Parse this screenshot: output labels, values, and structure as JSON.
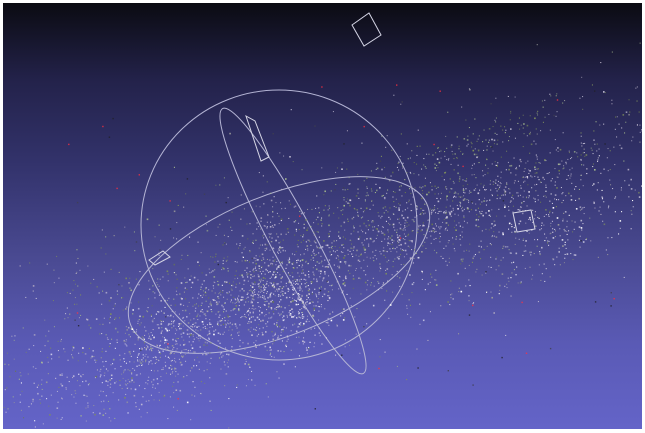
{
  "app": {
    "window": "meshlab-3d-viewport"
  },
  "viewport": {
    "background_top": "#0b0b12",
    "background_bottom": "#6464c8",
    "trackball_color": "#b4b4d4",
    "camera_frame_color": "#d4d4e4",
    "point_colors": [
      "#c8c4d8",
      "#e4dcec",
      "#a4b88c",
      "#7e8e5c",
      "#ffffff",
      "#b8b0c4",
      "#9a9a9a",
      "#6a7a4c"
    ],
    "sparse_colors": [
      "#ff3040",
      "#404050",
      "#202028"
    ],
    "icons": [
      "trackball-icon",
      "camera-frustum-icon"
    ]
  }
}
